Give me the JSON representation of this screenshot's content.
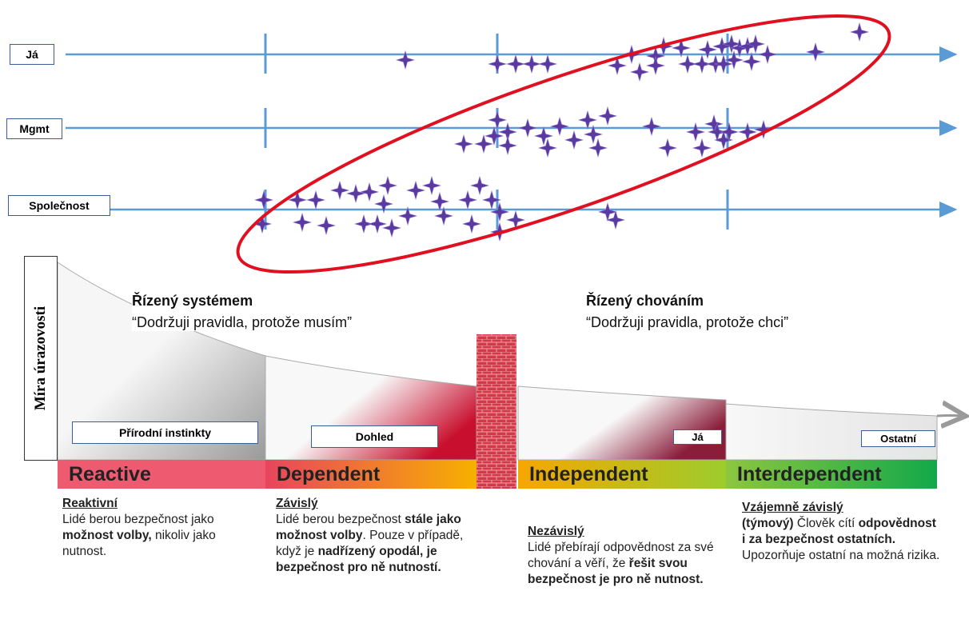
{
  "rows": [
    "Já",
    "Mgmt",
    "Společnost"
  ],
  "y_axis_label": "Míra úrazovosti",
  "left_heading": {
    "title": "Řízený systémem",
    "quote": "“Dodržuji pravidla, protože musím”"
  },
  "right_heading": {
    "title": "Řízený chováním",
    "quote": "“Dodržuji pravidla, protože chci”"
  },
  "boxes": [
    "Přírodní instinkty",
    "Dohled",
    "Já",
    "Ostatní"
  ],
  "stages": [
    {
      "name": "Reactive",
      "title": "Reaktivní",
      "body": [
        {
          "text": "Lidé berou bezpečnost jako ",
          "bold": false
        },
        {
          "text": "možnost volby,",
          "bold": true
        },
        {
          "text": " nikoliv jako nutnost.",
          "bold": false
        }
      ]
    },
    {
      "name": "Dependent",
      "title": "Závislý",
      "body": [
        {
          "text": "Lidé berou bezpečnost ",
          "bold": false
        },
        {
          "text": "stále jako možnost volby",
          "bold": true
        },
        {
          "text": ". Pouze v případě, když je ",
          "bold": false
        },
        {
          "text": "nadřízený opodál, je bezpečnost pro ně nutností.",
          "bold": true
        }
      ]
    },
    {
      "name": "Independent",
      "title": "Nezávislý",
      "body": [
        {
          "text": "Lidé přebírají odpovědnost za své chování a věří, že ",
          "bold": false
        },
        {
          "text": "řešit svou bezpečnost je pro ně nutnost.",
          "bold": true
        }
      ]
    },
    {
      "name": "Interdependent",
      "title": "Vzájemně závislý",
      "body": [
        {
          "text": "(týmový) ",
          "bold": true
        },
        {
          "text": "Člověk cítí ",
          "bold": false
        },
        {
          "text": "odpovědnost i za bezpečnost ostatních.",
          "bold": true
        },
        {
          "text": " Upozorňuje ostatní na možná rizika.",
          "bold": false
        }
      ]
    }
  ]
}
